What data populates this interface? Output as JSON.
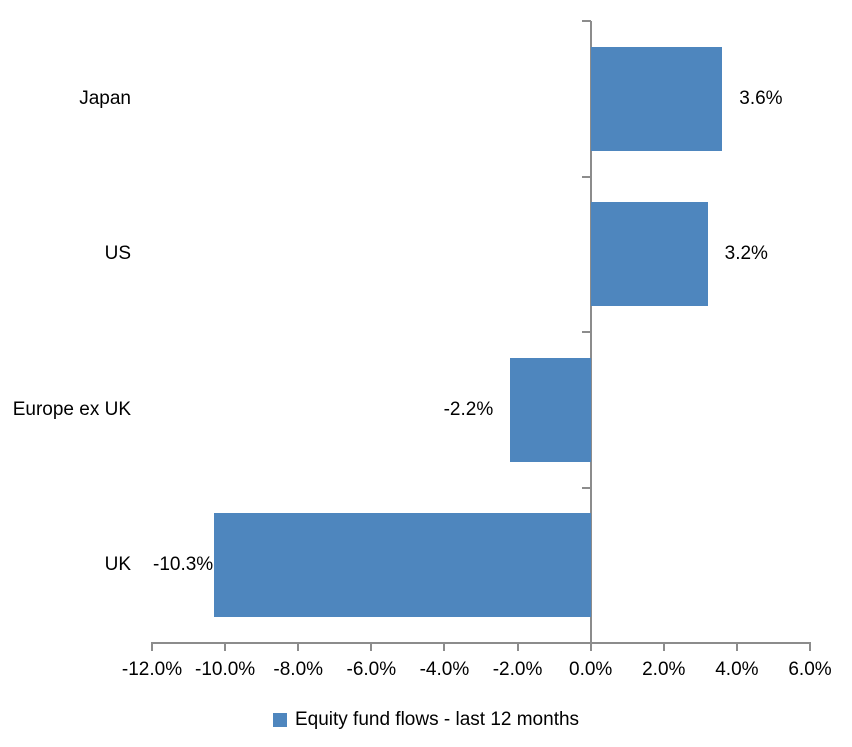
{
  "chart_data": {
    "type": "bar",
    "orientation": "horizontal",
    "title": "",
    "categories": [
      "Japan",
      "US",
      "Europe ex UK",
      "UK"
    ],
    "series": [
      {
        "name": "Equity fund flows - last 12 months",
        "values": [
          3.6,
          3.2,
          -2.2,
          -10.3
        ],
        "value_labels": [
          "3.6%",
          "3.2%",
          "-2.2%",
          "-10.3%"
        ]
      }
    ],
    "series_name": "Equity fund flows - last 12 months",
    "xlabel": "",
    "ylabel": "",
    "xlim": [
      -12,
      6
    ],
    "x_ticks": [
      -12,
      -10,
      -8,
      -6,
      -4,
      -2,
      0,
      2,
      4,
      6
    ],
    "x_tick_labels": [
      "-12.0%",
      "-10.0%",
      "-8.0%",
      "-6.0%",
      "-4.0%",
      "-2.0%",
      "0.0%",
      "2.0%",
      "4.0%",
      "6.0%"
    ],
    "grid": "off",
    "legend_position": "bottom",
    "bar_color": "#4E86BE",
    "axis_color": "#8C8C8C",
    "text_color": "#000000"
  },
  "legend": {
    "label": "Equity fund flows - last 12 months"
  }
}
